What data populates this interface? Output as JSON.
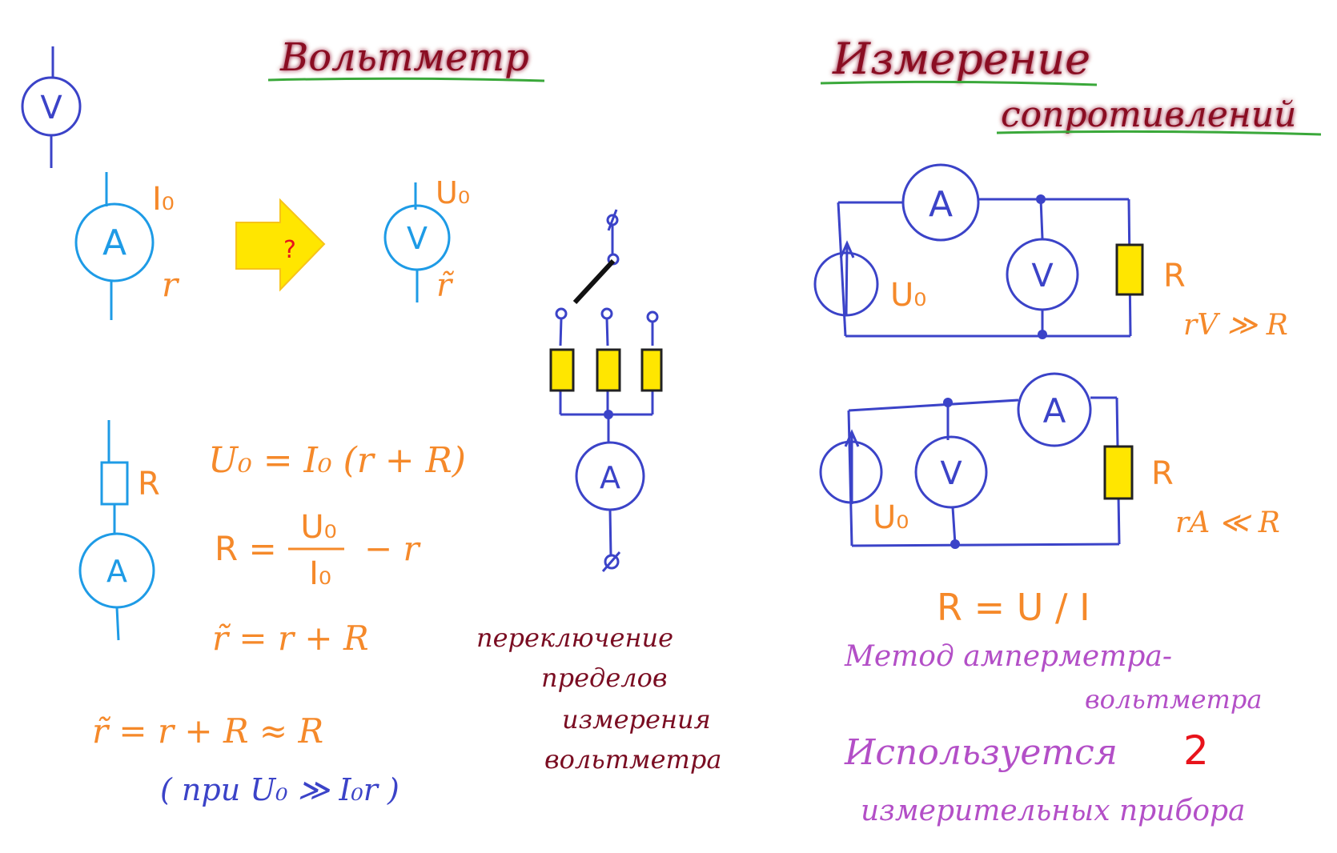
{
  "titles": {
    "voltmeter": "Вольтметр",
    "measurement_line1": "Измерение",
    "measurement_line2": "сопротивлений"
  },
  "meter_symbols": {
    "voltmeter": "V",
    "ammeter": "A"
  },
  "convert": {
    "ammeter_current": "I₀",
    "ammeter_resistance": "r",
    "question": "?",
    "voltmeter_voltage": "U₀",
    "voltmeter_resistance": "r̃"
  },
  "series_diagram": {
    "resistor_label": "R"
  },
  "formulas": {
    "f1": "U₀ = I₀ (r + R)",
    "f2_left": "R =",
    "f2_num": "U₀",
    "f2_den": "I₀",
    "f2_right": "−  r",
    "f3": "r̃  =  r + R",
    "f4": "r̃ = r + R ≈ R",
    "f5": "( при  U₀ ≫ I₀r )"
  },
  "range_switch_caption": [
    "переключение",
    "пределов",
    "измерения",
    "вольтметра"
  ],
  "circuit1": {
    "source_label": "U₀",
    "resistor_label": "R",
    "condition": "rV ≫ R"
  },
  "circuit2": {
    "source_label": "U₀",
    "resistor_label": "R",
    "condition": "rA ≪ R"
  },
  "method": {
    "formula": "R =  U / I",
    "line1": "Метод амперметра-",
    "line2": "вольтметра",
    "uses_text": "Используется",
    "uses_count": "2",
    "line3": "измерительных прибора"
  },
  "colors": {
    "dark_blue": "#3b43c8",
    "light_blue": "#1e9be6",
    "orange": "#f5892a",
    "dark_red": "#7a0d22",
    "purple": "#b34fc7",
    "yellow": "#ffe600",
    "green_underline": "#3aa83a",
    "red": "#e8131b"
  }
}
